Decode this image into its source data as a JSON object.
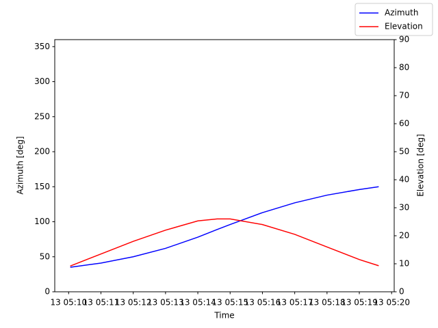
{
  "chart_data": {
    "type": "line",
    "xlabel": "Time",
    "ylabel": "Azimuth [deg]",
    "y2label": "Elevation [deg]",
    "x": [
      0.05,
      1,
      2,
      3,
      4,
      4.6,
      5,
      6,
      7,
      8,
      9,
      9.6
    ],
    "series": [
      {
        "name": "Azimuth",
        "color": "#0000ff",
        "values": [
          35,
          41,
          50,
          62,
          78,
          89,
          96,
          113,
          127,
          138,
          146,
          150
        ]
      },
      {
        "name": "Elevation",
        "color": "#ff0000",
        "axis": "y2",
        "values": [
          9.2,
          13.5,
          18,
          22,
          25.3,
          26,
          26,
          24,
          20.5,
          16,
          11.5,
          9.3
        ]
      }
    ],
    "xlim": [
      -0.43,
      10.08
    ],
    "xticks": [
      {
        "value": 0,
        "label": "13 05:10"
      },
      {
        "value": 1,
        "label": "13 05:11"
      },
      {
        "value": 2,
        "label": "13 05:12"
      },
      {
        "value": 3,
        "label": "13 05:13"
      },
      {
        "value": 4,
        "label": "13 05:14"
      },
      {
        "value": 5,
        "label": "13 05:15"
      },
      {
        "value": 6,
        "label": "13 05:16"
      },
      {
        "value": 7,
        "label": "13 05:17"
      },
      {
        "value": 8,
        "label": "13 05:18"
      },
      {
        "value": 9,
        "label": "13 05:19"
      },
      {
        "value": 10,
        "label": "13 05:20"
      }
    ],
    "ylim": [
      0,
      360
    ],
    "yticks": [
      0,
      50,
      100,
      150,
      200,
      250,
      300,
      350
    ],
    "y2lim": [
      0,
      90
    ],
    "y2ticks": [
      0,
      10,
      20,
      30,
      40,
      50,
      60,
      70,
      80,
      90
    ],
    "legend": "upper right"
  }
}
